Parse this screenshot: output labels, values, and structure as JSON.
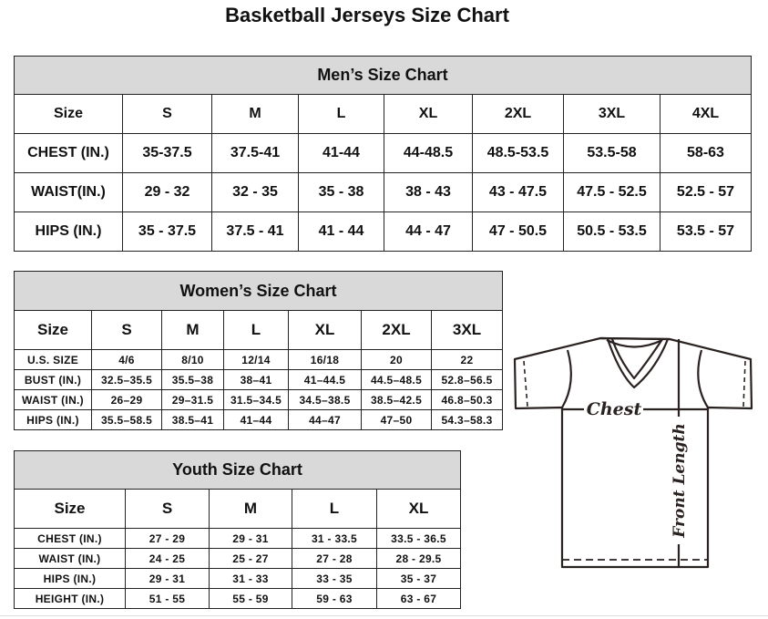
{
  "title": "Basketball Jerseys Size Chart",
  "men": {
    "title": "Men’s Size Chart",
    "header": [
      "Size",
      "S",
      "M",
      "L",
      "XL",
      "2XL",
      "3XL",
      "4XL"
    ],
    "rows": [
      [
        "CHEST (IN.)",
        "35-37.5",
        "37.5-41",
        "41-44",
        "44-48.5",
        "48.5-53.5",
        "53.5-58",
        "58-63"
      ],
      [
        "WAIST(IN.)",
        "29 - 32",
        "32 - 35",
        "35 - 38",
        "38 - 43",
        "43 - 47.5",
        "47.5 - 52.5",
        "52.5 - 57"
      ],
      [
        "HIPS (IN.)",
        "35 - 37.5",
        "37.5 - 41",
        "41 - 44",
        "44 - 47",
        "47 - 50.5",
        "50.5 - 53.5",
        "53.5 - 57"
      ]
    ]
  },
  "women": {
    "title": "Women’s Size Chart",
    "header": [
      "Size",
      "S",
      "M",
      "L",
      "XL",
      "2XL",
      "3XL"
    ],
    "rows": [
      [
        "U.S. SIZE",
        "4/6",
        "8/10",
        "12/14",
        "16/18",
        "20",
        "22"
      ],
      [
        "BUST (IN.)",
        "32.5–35.5",
        "35.5–38",
        "38–41",
        "41–44.5",
        "44.5–48.5",
        "52.8–56.5"
      ],
      [
        "WAIST (IN.)",
        "26–29",
        "29–31.5",
        "31.5–34.5",
        "34.5–38.5",
        "38.5–42.5",
        "46.8–50.3"
      ],
      [
        "HIPS (IN.)",
        "35.5–58.5",
        "38.5–41",
        "41–44",
        "44–47",
        "47–50",
        "54.3–58.3"
      ]
    ]
  },
  "youth": {
    "title": "Youth Size Chart",
    "header": [
      "Size",
      "S",
      "M",
      "L",
      "XL"
    ],
    "rows": [
      [
        "CHEST (IN.)",
        "27 - 29",
        "29 - 31",
        "31 - 33.5",
        "33.5 - 36.5"
      ],
      [
        "WAIST (IN.)",
        "24 - 25",
        "25 - 27",
        "27 - 28",
        "28 - 29.5"
      ],
      [
        "HIPS (IN.)",
        "29 - 31",
        "31 - 33",
        "33 - 35",
        "35 - 37"
      ],
      [
        "HEIGHT (IN.)",
        "51 - 55",
        "55 - 59",
        "59 - 63",
        "63 - 67"
      ]
    ]
  },
  "diagram": {
    "chest_label": "Chest",
    "length_label": "Front Length"
  }
}
